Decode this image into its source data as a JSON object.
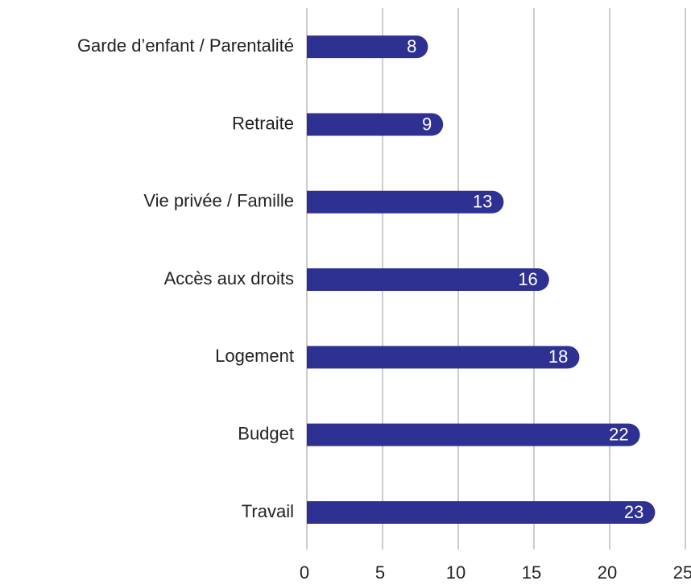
{
  "chart_data": {
    "type": "bar",
    "orientation": "horizontal",
    "categories": [
      "Garde d’enfant / Parentalité",
      "Retraite",
      "Vie privée / Famille",
      "Accès aux droits",
      "Logement",
      "Budget",
      "Travail"
    ],
    "values": [
      8,
      9,
      13,
      16,
      18,
      22,
      23
    ],
    "color": "#2e3192",
    "xlim": [
      0,
      25
    ],
    "xticks": [
      0,
      5,
      10,
      15,
      20,
      25
    ],
    "grid": true
  }
}
